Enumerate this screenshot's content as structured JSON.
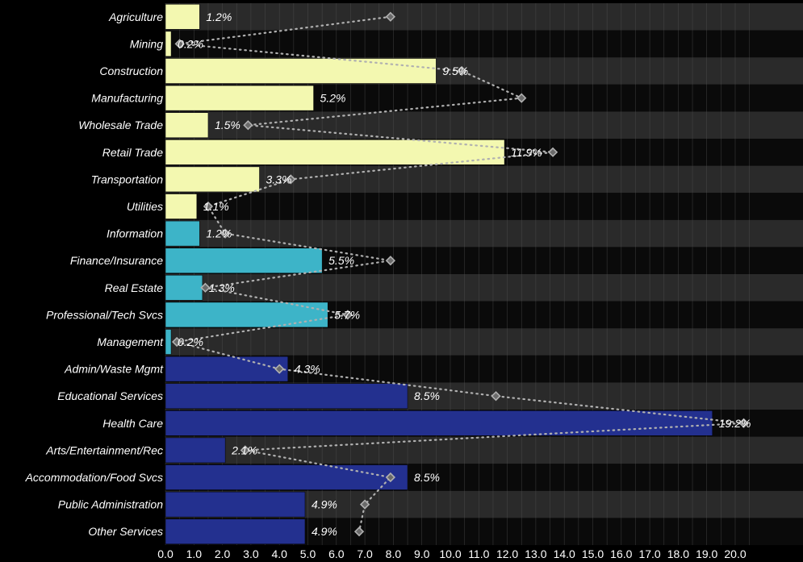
{
  "chart_data": {
    "type": "bar",
    "orientation": "horizontal",
    "categories": [
      "Agriculture",
      "Mining",
      "Construction",
      "Manufacturing",
      "Wholesale Trade",
      "Retail Trade",
      "Transportation",
      "Utilities",
      "Information",
      "Finance/Insurance",
      "Real Estate",
      "Professional/Tech Svcs",
      "Management",
      "Admin/Waste Mgmt",
      "Educational Services",
      "Health Care",
      "Arts/Entertainment/Rec",
      "Accommodation/Food Svcs",
      "Public Administration",
      "Other Services"
    ],
    "values": [
      1.2,
      0.2,
      9.5,
      5.2,
      1.5,
      11.9,
      3.3,
      1.1,
      1.2,
      5.5,
      1.3,
      5.7,
      0.2,
      4.3,
      8.5,
      19.2,
      2.1,
      8.5,
      4.9,
      4.9
    ],
    "value_labels": [
      "1.2%",
      "0.2%",
      "9.5%",
      "5.2%",
      "1.5%",
      "11.9%",
      "3.3%",
      "1.1%",
      "1.2%",
      "5.5%",
      "1.3%",
      "5.7%",
      "0.2%",
      "4.3%",
      "8.5%",
      "19.2%",
      "2.1%",
      "8.5%",
      "4.9%",
      "4.9%"
    ],
    "markers": [
      7.9,
      0.5,
      10.4,
      12.5,
      2.9,
      13.6,
      4.4,
      1.5,
      2.1,
      7.9,
      1.4,
      6.4,
      0.4,
      4.0,
      11.6,
      20.3,
      2.8,
      7.9,
      7.0,
      6.8
    ],
    "bar_colors": [
      "#f3f8b0",
      "#f3f8b0",
      "#f3f8b0",
      "#f3f8b0",
      "#f3f8b0",
      "#f3f8b0",
      "#f3f8b0",
      "#f3f8b0",
      "#3db4c8",
      "#3db4c8",
      "#3db4c8",
      "#3db4c8",
      "#3db4c8",
      "#23308f",
      "#23308f",
      "#23308f",
      "#23308f",
      "#23308f",
      "#23308f",
      "#23308f"
    ],
    "marker_color": "#b0b0b0",
    "connector_style": "dotted",
    "xlim": [
      0,
      20.5
    ],
    "xticks": [
      "0.0",
      "1.0",
      "2.0",
      "3.0",
      "4.0",
      "5.0",
      "6.0",
      "7.0",
      "8.0",
      "9.0",
      "10.0",
      "11.0",
      "12.0",
      "13.0",
      "14.0",
      "15.0",
      "16.0",
      "17.0",
      "18.0",
      "19.0",
      "20.0"
    ],
    "background": "#000000",
    "band_colors": [
      "#2a2a2a",
      "#0a0a0a"
    ],
    "grid": true,
    "grid_color": "#555555"
  }
}
